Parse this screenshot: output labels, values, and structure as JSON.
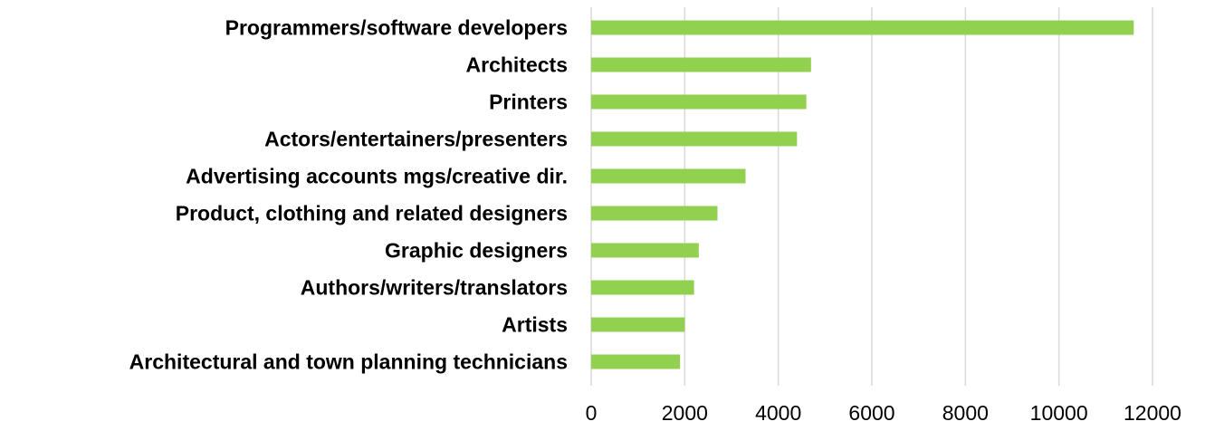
{
  "chart_data": {
    "type": "bar",
    "orientation": "horizontal",
    "title": "",
    "xlabel": "",
    "ylabel": "",
    "categories": [
      "Programmers/software developers",
      "Architects",
      "Printers",
      "Actors/entertainers/presenters",
      "Advertising accounts mgs/creative dir.",
      "Product, clothing and related designers",
      "Graphic designers",
      "Authors/writers/translators",
      "Artists",
      "Architectural and town planning technicians"
    ],
    "values": [
      11600,
      4700,
      4600,
      4400,
      3300,
      2700,
      2300,
      2200,
      2000,
      1900
    ],
    "xlim": [
      0,
      12000
    ],
    "xticks": [
      0,
      2000,
      4000,
      6000,
      8000,
      10000,
      12000
    ],
    "x_gridlines": true,
    "legend": "none",
    "bar_color": "#92d050",
    "gridline_color": "#d9d9d9",
    "label_color": "#000000"
  }
}
